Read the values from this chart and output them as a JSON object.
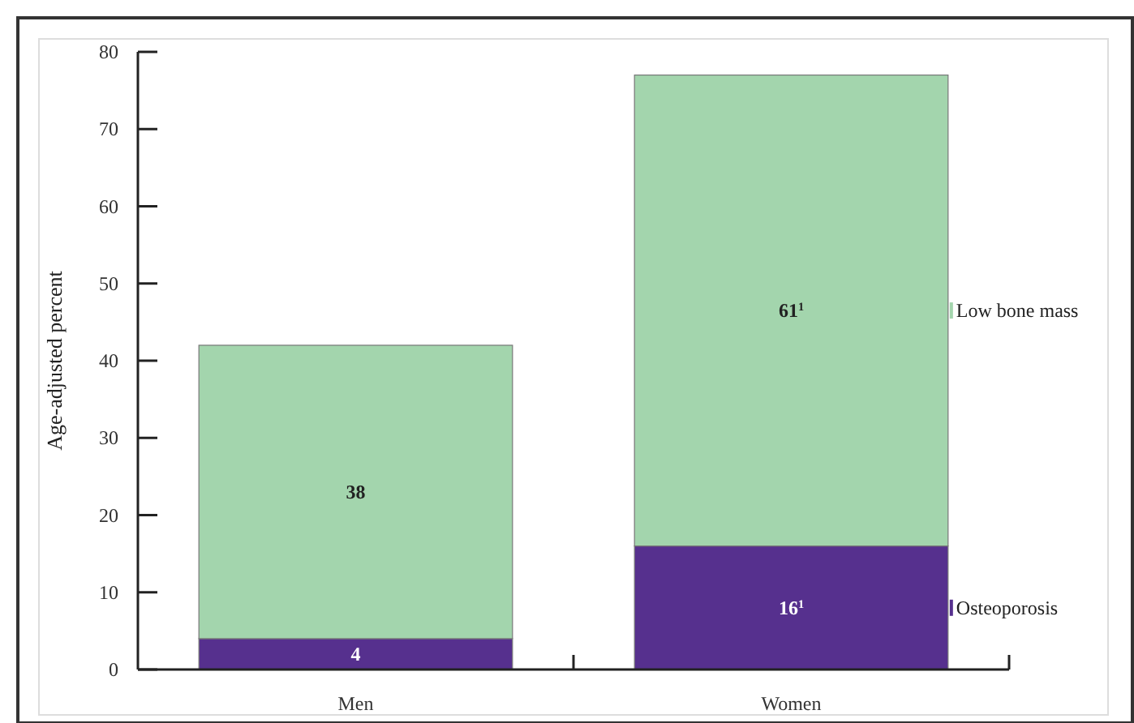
{
  "chart_data": {
    "type": "bar",
    "stacked": true,
    "ylabel": "Age-adjusted percent",
    "categories": [
      "Men",
      "Women"
    ],
    "series": [
      {
        "name": "Osteoporosis",
        "color": "#56308e",
        "values": [
          4,
          16
        ],
        "value_labels": [
          "4",
          "16$^{1}$"
        ]
      },
      {
        "name": "Low bone mass",
        "color": "#a3d5ad",
        "values": [
          38,
          61
        ],
        "value_labels": [
          "38",
          "61$^{1}$"
        ]
      }
    ],
    "ylim": [
      0,
      80
    ],
    "yticks": [
      0,
      10,
      20,
      30,
      40,
      50,
      60,
      70,
      80
    ],
    "legend": "right"
  }
}
